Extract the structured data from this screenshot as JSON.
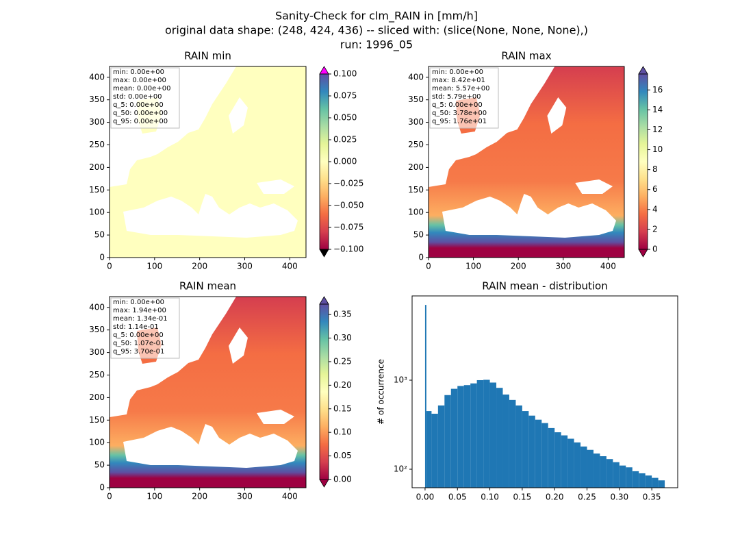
{
  "suptitle": [
    "Sanity-Check for clm_RAIN in [mm/h]",
    "original data shape: (248, 424, 436) -- sliced with: (slice(None, None, None),)",
    "run: 1996_05"
  ],
  "chart_data": [
    {
      "type": "heatmap",
      "title": "RAIN min",
      "xlim": [
        0,
        436
      ],
      "ylim": [
        0,
        424
      ],
      "xticks": [
        0,
        100,
        200,
        300,
        400
      ],
      "yticks": [
        0,
        50,
        100,
        150,
        200,
        250,
        300,
        350,
        400
      ],
      "stats": [
        "min: 0.00e+00",
        "max: 0.00e+00",
        "mean: 0.00e+00",
        "std: 0.00e+00",
        "q_5: 0.00e+00",
        "q_50: 0.00e+00",
        "q_95: 0.00e+00"
      ],
      "colorbar": {
        "lim": [
          -0.1,
          0.1
        ],
        "ticks": [
          {
            "value": -0.1,
            "label": "−0.100"
          },
          {
            "value": -0.075,
            "label": "−0.075"
          },
          {
            "value": -0.05,
            "label": "−0.050"
          },
          {
            "value": -0.025,
            "label": "−0.025"
          },
          {
            "value": 0,
            "label": "0.000"
          },
          {
            "value": 0.025,
            "label": "0.025"
          },
          {
            "value": 0.05,
            "label": "0.050"
          },
          {
            "value": 0.075,
            "label": "0.075"
          },
          {
            "value": 0.1,
            "label": "0.100"
          }
        ],
        "colors": [
          "#9e0142",
          "#d53e4f",
          "#f46d43",
          "#fdae61",
          "#fee08b",
          "#ffffbf",
          "#e6f598",
          "#abdda4",
          "#66c2a5",
          "#3288bd",
          "#5e4fa2"
        ],
        "extend_colors": [
          "#000000",
          "#ff00ff"
        ]
      }
    },
    {
      "type": "heatmap",
      "title": "RAIN max",
      "xlim": [
        0,
        436
      ],
      "ylim": [
        0,
        424
      ],
      "xticks": [
        0,
        100,
        200,
        300,
        400
      ],
      "yticks": [
        0,
        50,
        100,
        150,
        200,
        250,
        300,
        350,
        400
      ],
      "stats": [
        "min: 0.00e+00",
        "max: 8.42e+01",
        "mean: 5.57e+00",
        "std: 5.79e+00",
        "q_5: 0.00e+00",
        "q_50: 3.78e+00",
        "q_95: 1.76e+01"
      ],
      "colorbar": {
        "lim": [
          0,
          17.6
        ],
        "ticks": [
          0,
          2,
          4,
          6,
          8,
          10,
          12,
          14,
          16
        ],
        "colors": [
          "#9e0142",
          "#d53e4f",
          "#f46d43",
          "#fdae61",
          "#fee08b",
          "#ffffbf",
          "#e6f598",
          "#abdda4",
          "#66c2a5",
          "#3288bd",
          "#5e4fa2"
        ],
        "extend_colors": [
          "#9e0142",
          "#5e4fa2"
        ]
      }
    },
    {
      "type": "heatmap",
      "title": "RAIN mean",
      "xlim": [
        0,
        436
      ],
      "ylim": [
        0,
        424
      ],
      "xticks": [
        0,
        100,
        200,
        300,
        400
      ],
      "yticks": [
        0,
        50,
        100,
        150,
        200,
        250,
        300,
        350,
        400
      ],
      "stats": [
        "min: 0.00e+00",
        "max: 1.94e+00",
        "mean: 1.34e-01",
        "std: 1.14e-01",
        "q_5: 0.00e+00",
        "q_50: 1.07e-01",
        "q_95: 3.70e-01"
      ],
      "colorbar": {
        "lim": [
          0,
          0.372
        ],
        "ticks": [
          {
            "value": 0,
            "label": "0.00"
          },
          {
            "value": 0.05,
            "label": "0.05"
          },
          {
            "value": 0.1,
            "label": "0.10"
          },
          {
            "value": 0.15,
            "label": "0.15"
          },
          {
            "value": 0.2,
            "label": "0.20"
          },
          {
            "value": 0.25,
            "label": "0.25"
          },
          {
            "value": 0.3,
            "label": "0.30"
          },
          {
            "value": 0.35,
            "label": "0.35"
          }
        ],
        "colors": [
          "#9e0142",
          "#d53e4f",
          "#f46d43",
          "#fdae61",
          "#fee08b",
          "#ffffbf",
          "#e6f598",
          "#abdda4",
          "#66c2a5",
          "#3288bd",
          "#5e4fa2"
        ],
        "extend_colors": [
          "#9e0142",
          "#5e4fa2"
        ]
      }
    },
    {
      "type": "histogram",
      "title": "RAIN mean - distribution",
      "ylabel": "# of occurrence",
      "color": "#1f77b4",
      "yscale": "log",
      "bins": [
        0,
        0.002,
        0.01,
        0.02,
        0.03,
        0.04,
        0.05,
        0.06,
        0.07,
        0.08,
        0.09,
        0.1,
        0.11,
        0.12,
        0.13,
        0.14,
        0.15,
        0.16,
        0.17,
        0.18,
        0.19,
        0.2,
        0.21,
        0.22,
        0.23,
        0.24,
        0.25,
        0.26,
        0.27,
        0.28,
        0.29,
        0.3,
        0.31,
        0.32,
        0.33,
        0.34,
        0.35,
        0.36,
        0.37
      ],
      "counts": [
        7000,
        450,
        420,
        520,
        680,
        800,
        860,
        880,
        920,
        1000,
        1010,
        940,
        820,
        690,
        600,
        520,
        450,
        400,
        360,
        330,
        290,
        260,
        240,
        220,
        200,
        180,
        165,
        150,
        140,
        130,
        120,
        110,
        105,
        95,
        90,
        85,
        80,
        75
      ],
      "xlim": [
        -0.02,
        0.39
      ],
      "ylim": [
        62,
        8830
      ],
      "xticks": [
        {
          "value": 0,
          "label": "0.00"
        },
        {
          "value": 0.05,
          "label": "0.05"
        },
        {
          "value": 0.1,
          "label": "0.10"
        },
        {
          "value": 0.15,
          "label": "0.15"
        },
        {
          "value": 0.2,
          "label": "0.20"
        },
        {
          "value": 0.25,
          "label": "0.25"
        },
        {
          "value": 0.3,
          "label": "0.30"
        },
        {
          "value": 0.35,
          "label": "0.35"
        }
      ],
      "yticks": [
        {
          "value": 100,
          "label": "10²"
        },
        {
          "value": 1000,
          "label": "10³"
        }
      ]
    }
  ]
}
